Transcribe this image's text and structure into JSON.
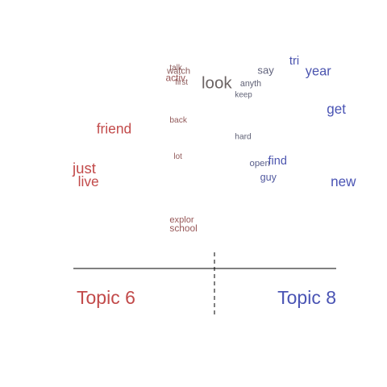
{
  "chart_data": {
    "type": "scatter",
    "subtype": "word-contrast-plot",
    "colors": {
      "topic_6": "#c24a4a",
      "topic_8": "#4a54b4",
      "neutral": "#666666",
      "axis": "#000000"
    },
    "topics": {
      "left": {
        "label": "Topic 6",
        "color": "#c24a4a"
      },
      "right": {
        "label": "Topic 8",
        "color": "#4a54b4"
      }
    },
    "xlim": [
      -1,
      1
    ],
    "ylim": [
      0,
      1
    ],
    "divider": "dashed vertical at 0",
    "words": [
      {
        "text": "talk",
        "x": -0.27,
        "y": 0.97,
        "weight": 0.12,
        "lean": -0.3
      },
      {
        "text": "watch",
        "x": -0.29,
        "y": 0.95,
        "weight": 0.22,
        "lean": -0.3
      },
      {
        "text": "first",
        "x": -0.23,
        "y": 0.89,
        "weight": 0.12,
        "lean": -0.3
      },
      {
        "text": "activ",
        "x": -0.3,
        "y": 0.91,
        "weight": 0.28,
        "lean": -0.4
      },
      {
        "text": "look",
        "x": -0.03,
        "y": 0.87,
        "weight": 1.0,
        "lean": -0.05
      },
      {
        "text": "say",
        "x": 0.39,
        "y": 0.95,
        "weight": 0.38,
        "lean": 0.2
      },
      {
        "text": "tri",
        "x": 0.63,
        "y": 1.0,
        "weight": 0.52,
        "lean": 0.7
      },
      {
        "text": "year",
        "x": 0.75,
        "y": 0.94,
        "weight": 0.66,
        "lean": 0.7
      },
      {
        "text": "anyth",
        "x": 0.26,
        "y": 0.88,
        "weight": 0.18,
        "lean": 0.15
      },
      {
        "text": "keep",
        "x": 0.22,
        "y": 0.82,
        "weight": 0.12,
        "lean": 0.15
      },
      {
        "text": "get",
        "x": 0.91,
        "y": 0.73,
        "weight": 0.72,
        "lean": 0.75
      },
      {
        "text": "friend",
        "x": -0.82,
        "y": 0.62,
        "weight": 0.74,
        "lean": -0.75
      },
      {
        "text": "back",
        "x": -0.27,
        "y": 0.68,
        "weight": 0.14,
        "lean": -0.35
      },
      {
        "text": "hard",
        "x": 0.22,
        "y": 0.59,
        "weight": 0.14,
        "lean": 0.15
      },
      {
        "text": "lot",
        "x": -0.24,
        "y": 0.48,
        "weight": 0.12,
        "lean": -0.35
      },
      {
        "text": "find",
        "x": 0.47,
        "y": 0.45,
        "weight": 0.5,
        "lean": 0.7
      },
      {
        "text": "open",
        "x": 0.33,
        "y": 0.44,
        "weight": 0.24,
        "lean": 0.35
      },
      {
        "text": "just",
        "x": -1.0,
        "y": 0.4,
        "weight": 0.84,
        "lean": -0.75
      },
      {
        "text": "live",
        "x": -0.96,
        "y": 0.33,
        "weight": 0.74,
        "lean": -0.75
      },
      {
        "text": "guy",
        "x": 0.41,
        "y": 0.36,
        "weight": 0.34,
        "lean": 0.55
      },
      {
        "text": "new",
        "x": 0.94,
        "y": 0.33,
        "weight": 0.72,
        "lean": 0.75
      },
      {
        "text": "explor",
        "x": -0.27,
        "y": 0.13,
        "weight": 0.22,
        "lean": -0.4
      },
      {
        "text": "school",
        "x": -0.27,
        "y": 0.08,
        "weight": 0.28,
        "lean": -0.4
      }
    ]
  }
}
